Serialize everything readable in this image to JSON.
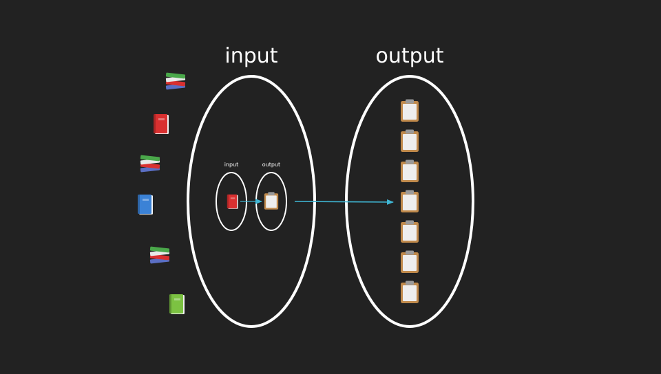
{
  "colors": {
    "background": "#222222",
    "set_outline": "#ffffff",
    "mapping_arrow": "#3fb6d4",
    "book_red": "#d93030",
    "book_blue": "#3b82d6",
    "book_green": "#7cc242",
    "clipboard_board": "#c08a4c",
    "clipboard_paper": "#eeeeee",
    "clipboard_clip": "#9a9a9a"
  },
  "outer": {
    "input_label": "input",
    "output_label": "output"
  },
  "inner": {
    "input_label": "input",
    "output_label": "output"
  },
  "input_side_items": [
    {
      "icon": "books-stack-icon"
    },
    {
      "icon": "red-book-icon"
    },
    {
      "icon": "books-stack-icon"
    },
    {
      "icon": "blue-book-icon"
    },
    {
      "icon": "books-stack-icon"
    },
    {
      "icon": "green-book-icon"
    }
  ],
  "output_items": [
    {
      "icon": "clipboard-icon"
    },
    {
      "icon": "clipboard-icon"
    },
    {
      "icon": "clipboard-icon"
    },
    {
      "icon": "clipboard-icon"
    },
    {
      "icon": "clipboard-icon"
    },
    {
      "icon": "clipboard-icon"
    },
    {
      "icon": "clipboard-icon"
    }
  ],
  "inner_items": {
    "input_icon": "red-book-icon",
    "output_icon": "clipboard-icon"
  }
}
